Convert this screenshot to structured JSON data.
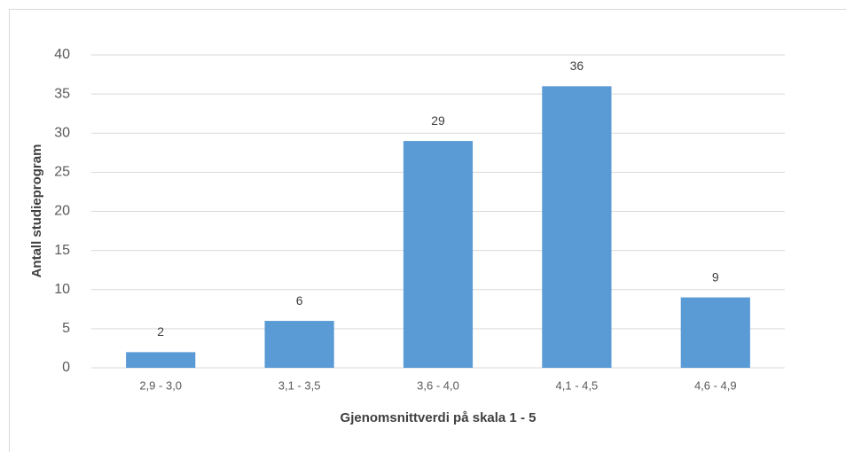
{
  "chart_data": {
    "type": "bar",
    "categories": [
      "2,9 - 3,0",
      "3,1 - 3,5",
      "3,6  - 4,0",
      "4,1 - 4,5",
      "4,6 - 4,9"
    ],
    "values": [
      2,
      6,
      29,
      36,
      9
    ],
    "color": "#5b9bd5",
    "ylim": [
      0,
      40
    ],
    "yticks": [
      0,
      5,
      10,
      15,
      20,
      25,
      30,
      35,
      40
    ],
    "grid": true,
    "x_label": "Gjenomsnittverdi på skala 1 - 5",
    "y_label": "Antall studieprogram"
  }
}
